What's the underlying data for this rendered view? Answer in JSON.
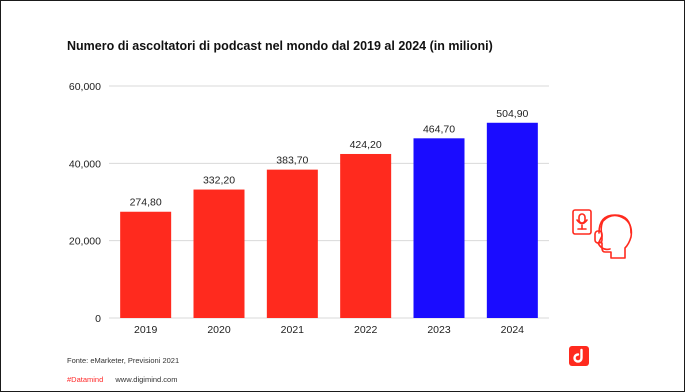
{
  "colors": {
    "historical": "#ff2a1e",
    "forecast": "#1a0cff",
    "grid": "#d9d9d9",
    "accent": "#ff2a2a"
  },
  "chart_data": {
    "type": "bar",
    "title": "Numero di ascoltatori di podcast nel mondo dal 2019 al 2024 (in milioni)",
    "categories": [
      "2019",
      "2020",
      "2021",
      "2022",
      "2023",
      "2024"
    ],
    "values": [
      27480,
      33220,
      38370,
      42420,
      46470,
      50490
    ],
    "value_labels": [
      "274,80",
      "332,20",
      "383,70",
      "424,20",
      "464,70",
      "504,90"
    ],
    "bar_colors": [
      "historical",
      "historical",
      "historical",
      "historical",
      "forecast",
      "forecast"
    ],
    "ylim": [
      0,
      60000
    ],
    "yticks": [
      0,
      20000,
      40000,
      60000
    ],
    "ytick_labels": [
      "0",
      "20,000",
      "40,000",
      "60,000"
    ],
    "grid": true,
    "xlabel": "",
    "ylabel": ""
  },
  "footer": {
    "source": "Fonte: eMarketer, Previsioni 2021",
    "hashtag": "#Datamind",
    "website": "www.digimind.com"
  },
  "icons": {
    "logo": "digimind-logo-icon",
    "podcast": "podcast-listener-icon"
  }
}
